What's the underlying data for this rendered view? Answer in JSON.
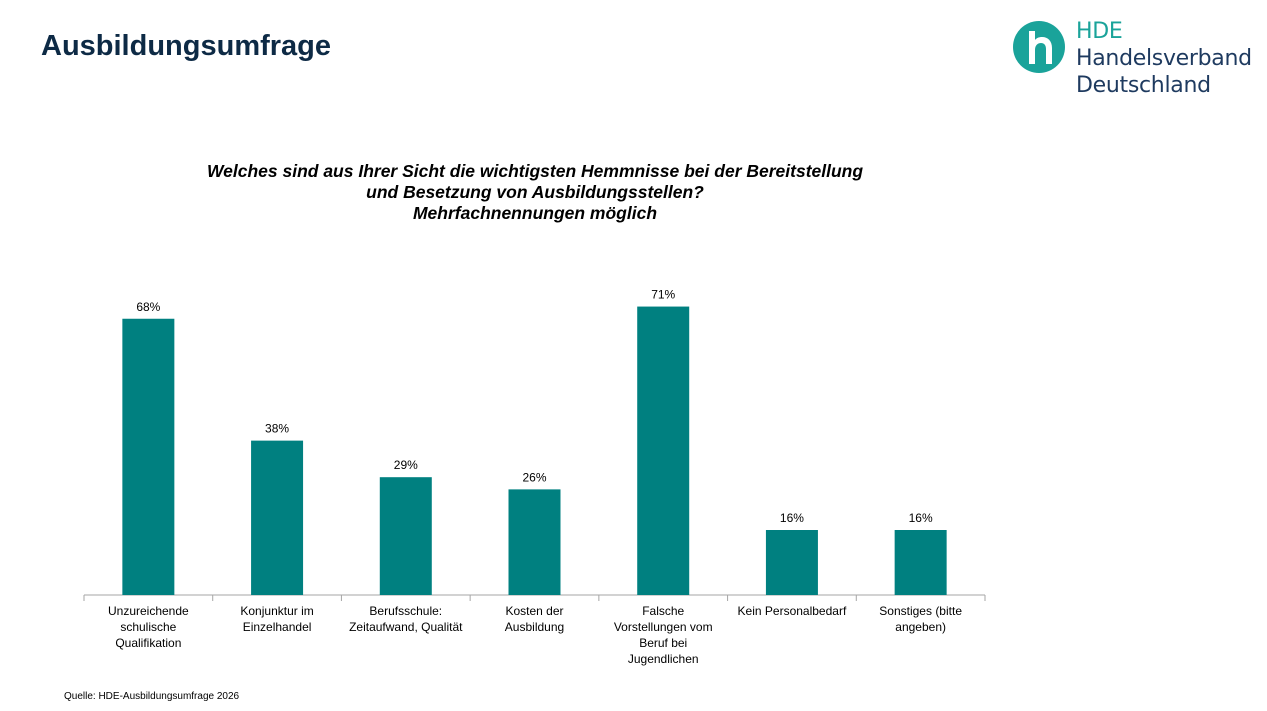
{
  "page": {
    "title": "Ausbildungsumfrage",
    "source": "Quelle: HDE-Ausbildungsumfrage 2026"
  },
  "logo": {
    "line1": "HDE",
    "line2": "Handelsverband",
    "line3": "Deutschland",
    "mark_color": "#1aa39a",
    "text_color": "#1e3a5f"
  },
  "chart_data": {
    "type": "bar",
    "title_lines": [
      "Welches sind aus Ihrer Sicht die wichtigsten Hemmnisse bei der Bereitstellung",
      "und Besetzung von Ausbildungsstellen?",
      "Mehrfachnennungen möglich"
    ],
    "categories": [
      [
        "Unzureichende",
        "schulische",
        "Qualifikation"
      ],
      [
        "Konjunktur im",
        "Einzelhandel"
      ],
      [
        "Berufsschule:",
        "Zeitaufwand, Qualität"
      ],
      [
        "Kosten der",
        "Ausbildung"
      ],
      [
        "Falsche",
        "Vorstellungen vom",
        "Beruf bei",
        "Jugendlichen"
      ],
      [
        "Kein Personalbedarf"
      ],
      [
        "Sonstiges (bitte",
        "angeben)"
      ]
    ],
    "values": [
      68,
      38,
      29,
      26,
      71,
      16,
      16
    ],
    "value_labels": [
      "68%",
      "38%",
      "29%",
      "26%",
      "71%",
      "16%",
      "16%"
    ],
    "ylim": [
      0,
      80
    ],
    "bar_color": "#008080",
    "grid": false,
    "legend": false
  }
}
